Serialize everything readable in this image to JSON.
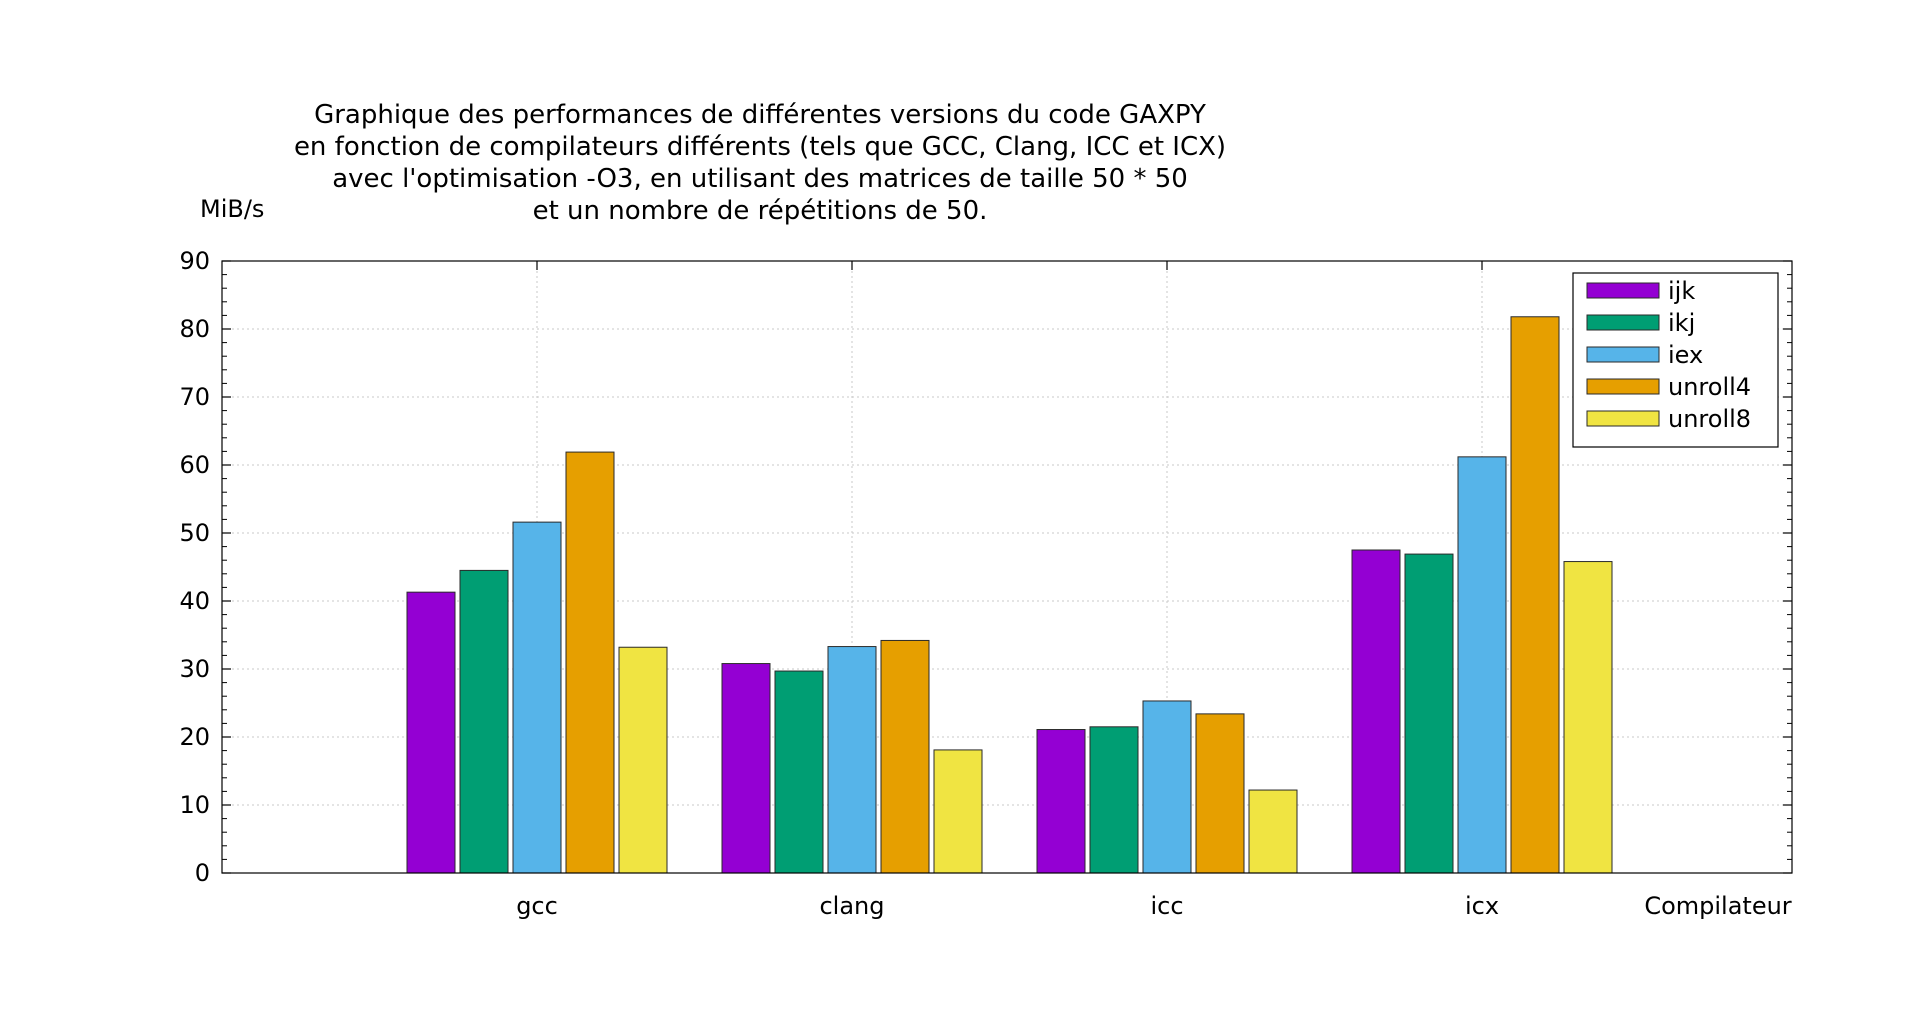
{
  "chart_data": {
    "type": "bar",
    "title_lines": [
      "Graphique des performances de différentes versions du code GAXPY",
      "en fonction de compilateurs différents (tels que GCC, Clang, ICC et ICX)",
      "avec l'optimisation -O3, en utilisant des matrices de taille 50 * 50",
      "et un nombre de répétitions de 50."
    ],
    "xlabel": "Compilateur",
    "ylabel": "MiB/s",
    "ylim": [
      0,
      90
    ],
    "yticks": [
      0,
      10,
      20,
      30,
      40,
      50,
      60,
      70,
      80,
      90
    ],
    "grid": true,
    "legend_position": "top-right",
    "categories": [
      "gcc",
      "clang",
      "icc",
      "icx"
    ],
    "series": [
      {
        "name": "ijk",
        "color": "#9400d3",
        "values": [
          41.3,
          30.8,
          21.1,
          47.5
        ]
      },
      {
        "name": "ikj",
        "color": "#009e73",
        "values": [
          44.5,
          29.7,
          21.5,
          46.9
        ]
      },
      {
        "name": "iex",
        "color": "#56b4e9",
        "values": [
          51.6,
          33.3,
          25.3,
          61.2
        ]
      },
      {
        "name": "unroll4",
        "color": "#e69f00",
        "values": [
          61.9,
          34.2,
          23.4,
          81.8
        ]
      },
      {
        "name": "unroll8",
        "color": "#f0e442",
        "values": [
          33.2,
          18.1,
          12.2,
          45.8
        ]
      }
    ]
  }
}
